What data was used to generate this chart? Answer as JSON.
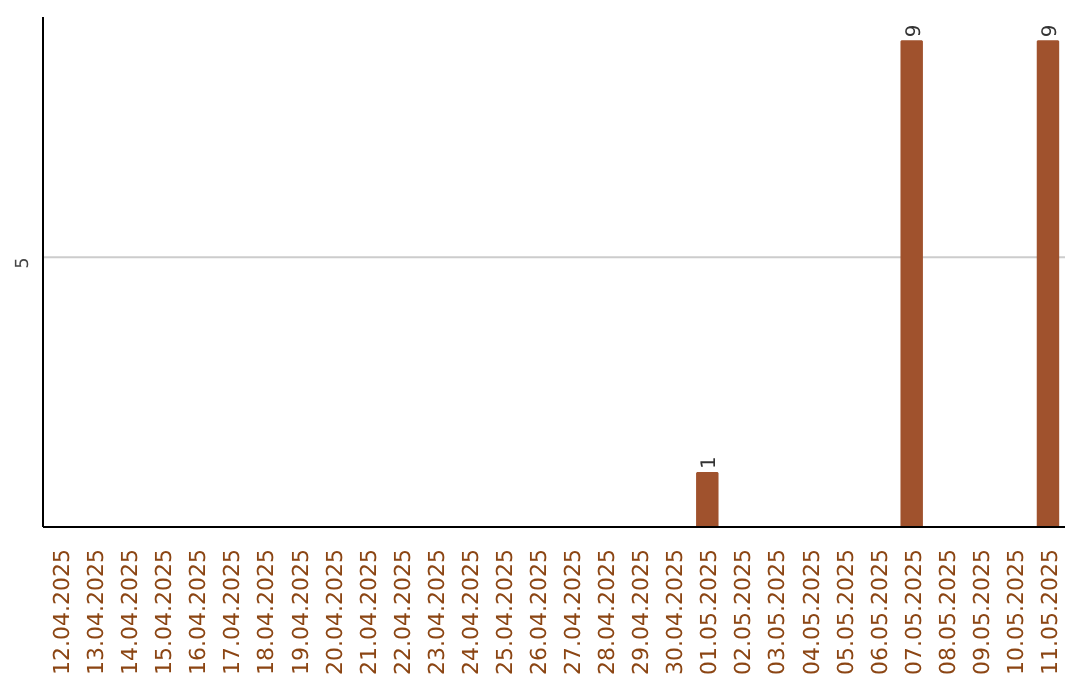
{
  "chart_data": {
    "type": "bar",
    "categories": [
      "12.04.2025",
      "13.04.2025",
      "14.04.2025",
      "15.04.2025",
      "16.04.2025",
      "17.04.2025",
      "18.04.2025",
      "19.04.2025",
      "20.04.2025",
      "21.04.2025",
      "22.04.2025",
      "23.04.2025",
      "24.04.2025",
      "25.04.2025",
      "26.04.2025",
      "27.04.2025",
      "28.04.2025",
      "29.04.2025",
      "30.04.2025",
      "01.05.2025",
      "02.05.2025",
      "03.05.2025",
      "04.05.2025",
      "05.05.2025",
      "06.05.2025",
      "07.05.2025",
      "08.05.2025",
      "09.05.2025",
      "10.05.2025",
      "11.05.2025"
    ],
    "values": [
      null,
      null,
      null,
      null,
      null,
      null,
      null,
      null,
      null,
      null,
      null,
      null,
      null,
      null,
      null,
      null,
      null,
      null,
      null,
      1,
      null,
      null,
      null,
      null,
      null,
      9,
      null,
      null,
      null,
      9
    ],
    "color": "#a0522d",
    "ylim": [
      0,
      9.45
    ],
    "ref_lines": [
      {
        "axis": "y",
        "value": 5,
        "label": "5",
        "color": "#cccccc"
      }
    ],
    "data_labels": true
  }
}
